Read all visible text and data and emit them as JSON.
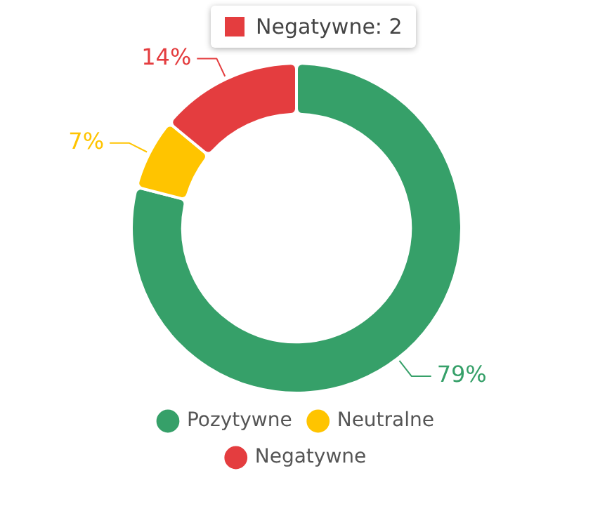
{
  "chart_data": {
    "type": "donut",
    "categories": [
      "Pozytywne",
      "Neutralne",
      "Negatywne"
    ],
    "values": [
      79,
      7,
      14
    ],
    "colors": [
      "#36a069",
      "#ffc400",
      "#e43d3f"
    ],
    "value_labels": [
      "79%",
      "7%",
      "14%"
    ],
    "annotations": [
      "Negatywne: 2"
    ],
    "legend": "bottom"
  }
}
